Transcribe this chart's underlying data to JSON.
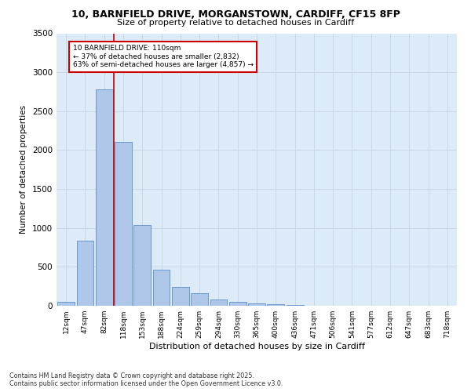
{
  "title_line1": "10, BARNFIELD DRIVE, MORGANSTOWN, CARDIFF, CF15 8FP",
  "title_line2": "Size of property relative to detached houses in Cardiff",
  "xlabel": "Distribution of detached houses by size in Cardiff",
  "ylabel": "Number of detached properties",
  "categories": [
    "12sqm",
    "47sqm",
    "82sqm",
    "118sqm",
    "153sqm",
    "188sqm",
    "224sqm",
    "259sqm",
    "294sqm",
    "330sqm",
    "365sqm",
    "400sqm",
    "436sqm",
    "471sqm",
    "506sqm",
    "541sqm",
    "577sqm",
    "612sqm",
    "647sqm",
    "683sqm",
    "718sqm"
  ],
  "values": [
    55,
    840,
    2780,
    2110,
    1040,
    460,
    240,
    160,
    80,
    50,
    35,
    20,
    10,
    5,
    2,
    1,
    0,
    0,
    0,
    0,
    0
  ],
  "bar_color": "#aec6e8",
  "bar_edge_color": "#5b8fc9",
  "vline_color": "#cc0000",
  "annotation_text": "10 BARNFIELD DRIVE: 110sqm\n← 37% of detached houses are smaller (2,832)\n63% of semi-detached houses are larger (4,857) →",
  "annotation_box_color": "#ffffff",
  "annotation_box_edge": "#cc0000",
  "ylim": [
    0,
    3500
  ],
  "yticks": [
    0,
    500,
    1000,
    1500,
    2000,
    2500,
    3000,
    3500
  ],
  "grid_color": "#c8d8e8",
  "bg_color": "#ddeaf7",
  "footer_line1": "Contains HM Land Registry data © Crown copyright and database right 2025.",
  "footer_line2": "Contains public sector information licensed under the Open Government Licence v3.0."
}
